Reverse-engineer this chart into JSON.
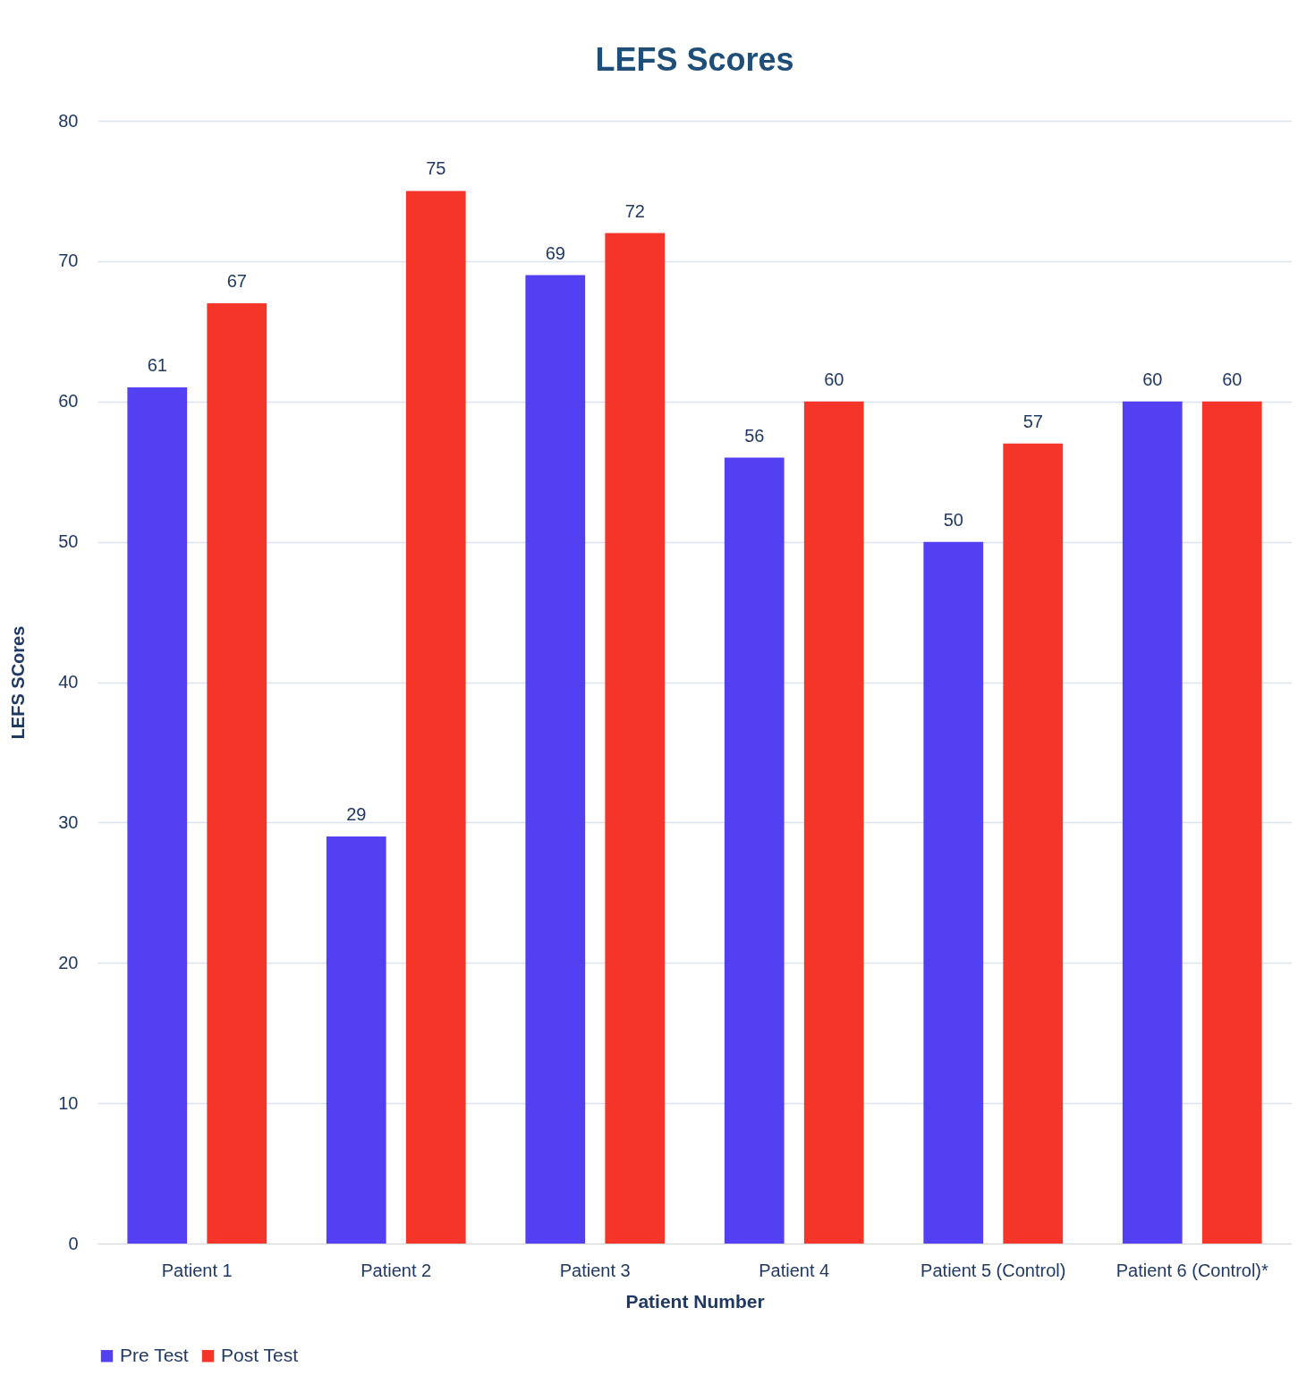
{
  "chart_data": {
    "type": "bar",
    "title": "LEFS Scores",
    "xlabel": "Patient Number",
    "ylabel": "LEFS SCores",
    "categories": [
      "Patient 1",
      "Patient 2",
      "Patient 3",
      "Patient 4",
      "Patient 5 (Control)",
      "Patient 6 (Control)*"
    ],
    "series": [
      {
        "name": "Pre Test",
        "color": "#5340f2",
        "values": [
          61,
          29,
          69,
          56,
          50,
          60
        ]
      },
      {
        "name": "Post Test",
        "color": "#f5352a",
        "values": [
          67,
          75,
          72,
          60,
          57,
          60
        ]
      }
    ],
    "ylim": [
      0,
      80
    ],
    "yticks": [
      0,
      10,
      20,
      30,
      40,
      50,
      60,
      70,
      80
    ],
    "grid": "y",
    "legend": "bottom",
    "data_labels": true
  }
}
